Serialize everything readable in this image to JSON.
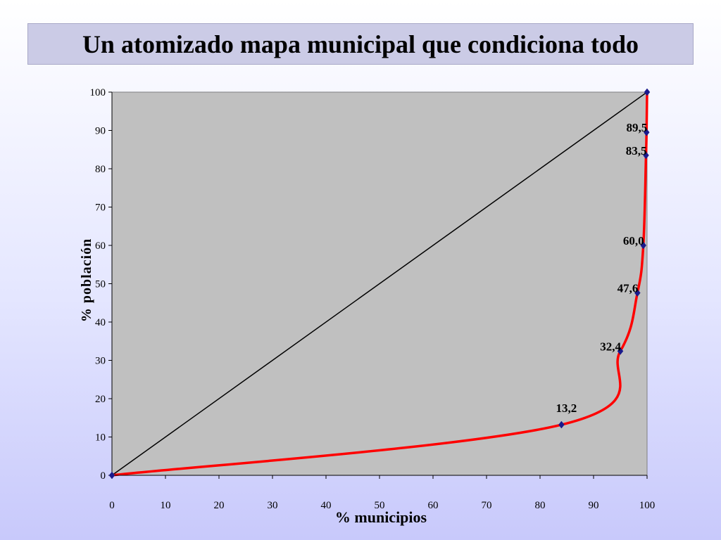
{
  "slide": {
    "title": "Un atomizado mapa municipal que condiciona todo"
  },
  "chart_data": {
    "type": "line",
    "title": "",
    "xlabel": "% municipios",
    "ylabel": "% población",
    "xlim": [
      0,
      100
    ],
    "ylim": [
      0,
      100
    ],
    "x_ticks": [
      "0",
      "10",
      "20",
      "30",
      "40",
      "50",
      "60",
      "70",
      "80",
      "90",
      "100"
    ],
    "y_ticks": [
      "0",
      "10",
      "20",
      "30",
      "40",
      "50",
      "60",
      "70",
      "80",
      "90",
      "100"
    ],
    "grid": false,
    "legend": "none",
    "series": [
      {
        "role": "equality-line",
        "color": "#000000",
        "points": [
          [
            0,
            0
          ],
          [
            100,
            100
          ]
        ]
      },
      {
        "role": "concentration-curve",
        "color": "#ff0000",
        "marker_color": "#1a1a8c",
        "points": [
          {
            "x": 0,
            "y": 0,
            "label": ""
          },
          {
            "x": 84,
            "y": 13.2,
            "label": "13,2"
          },
          {
            "x": 95,
            "y": 32.4,
            "label": "32,4"
          },
          {
            "x": 98.2,
            "y": 47.6,
            "label": "47,6"
          },
          {
            "x": 99.3,
            "y": 60.0,
            "label": "60,0"
          },
          {
            "x": 99.8,
            "y": 83.5,
            "label": "83,5"
          },
          {
            "x": 99.9,
            "y": 89.5,
            "label": "89,5"
          },
          {
            "x": 100,
            "y": 100,
            "label": ""
          }
        ]
      }
    ],
    "colors": {
      "plot_background": "#c0c0c0",
      "curve": "#ff0000",
      "marker": "#1a1a8c"
    }
  }
}
